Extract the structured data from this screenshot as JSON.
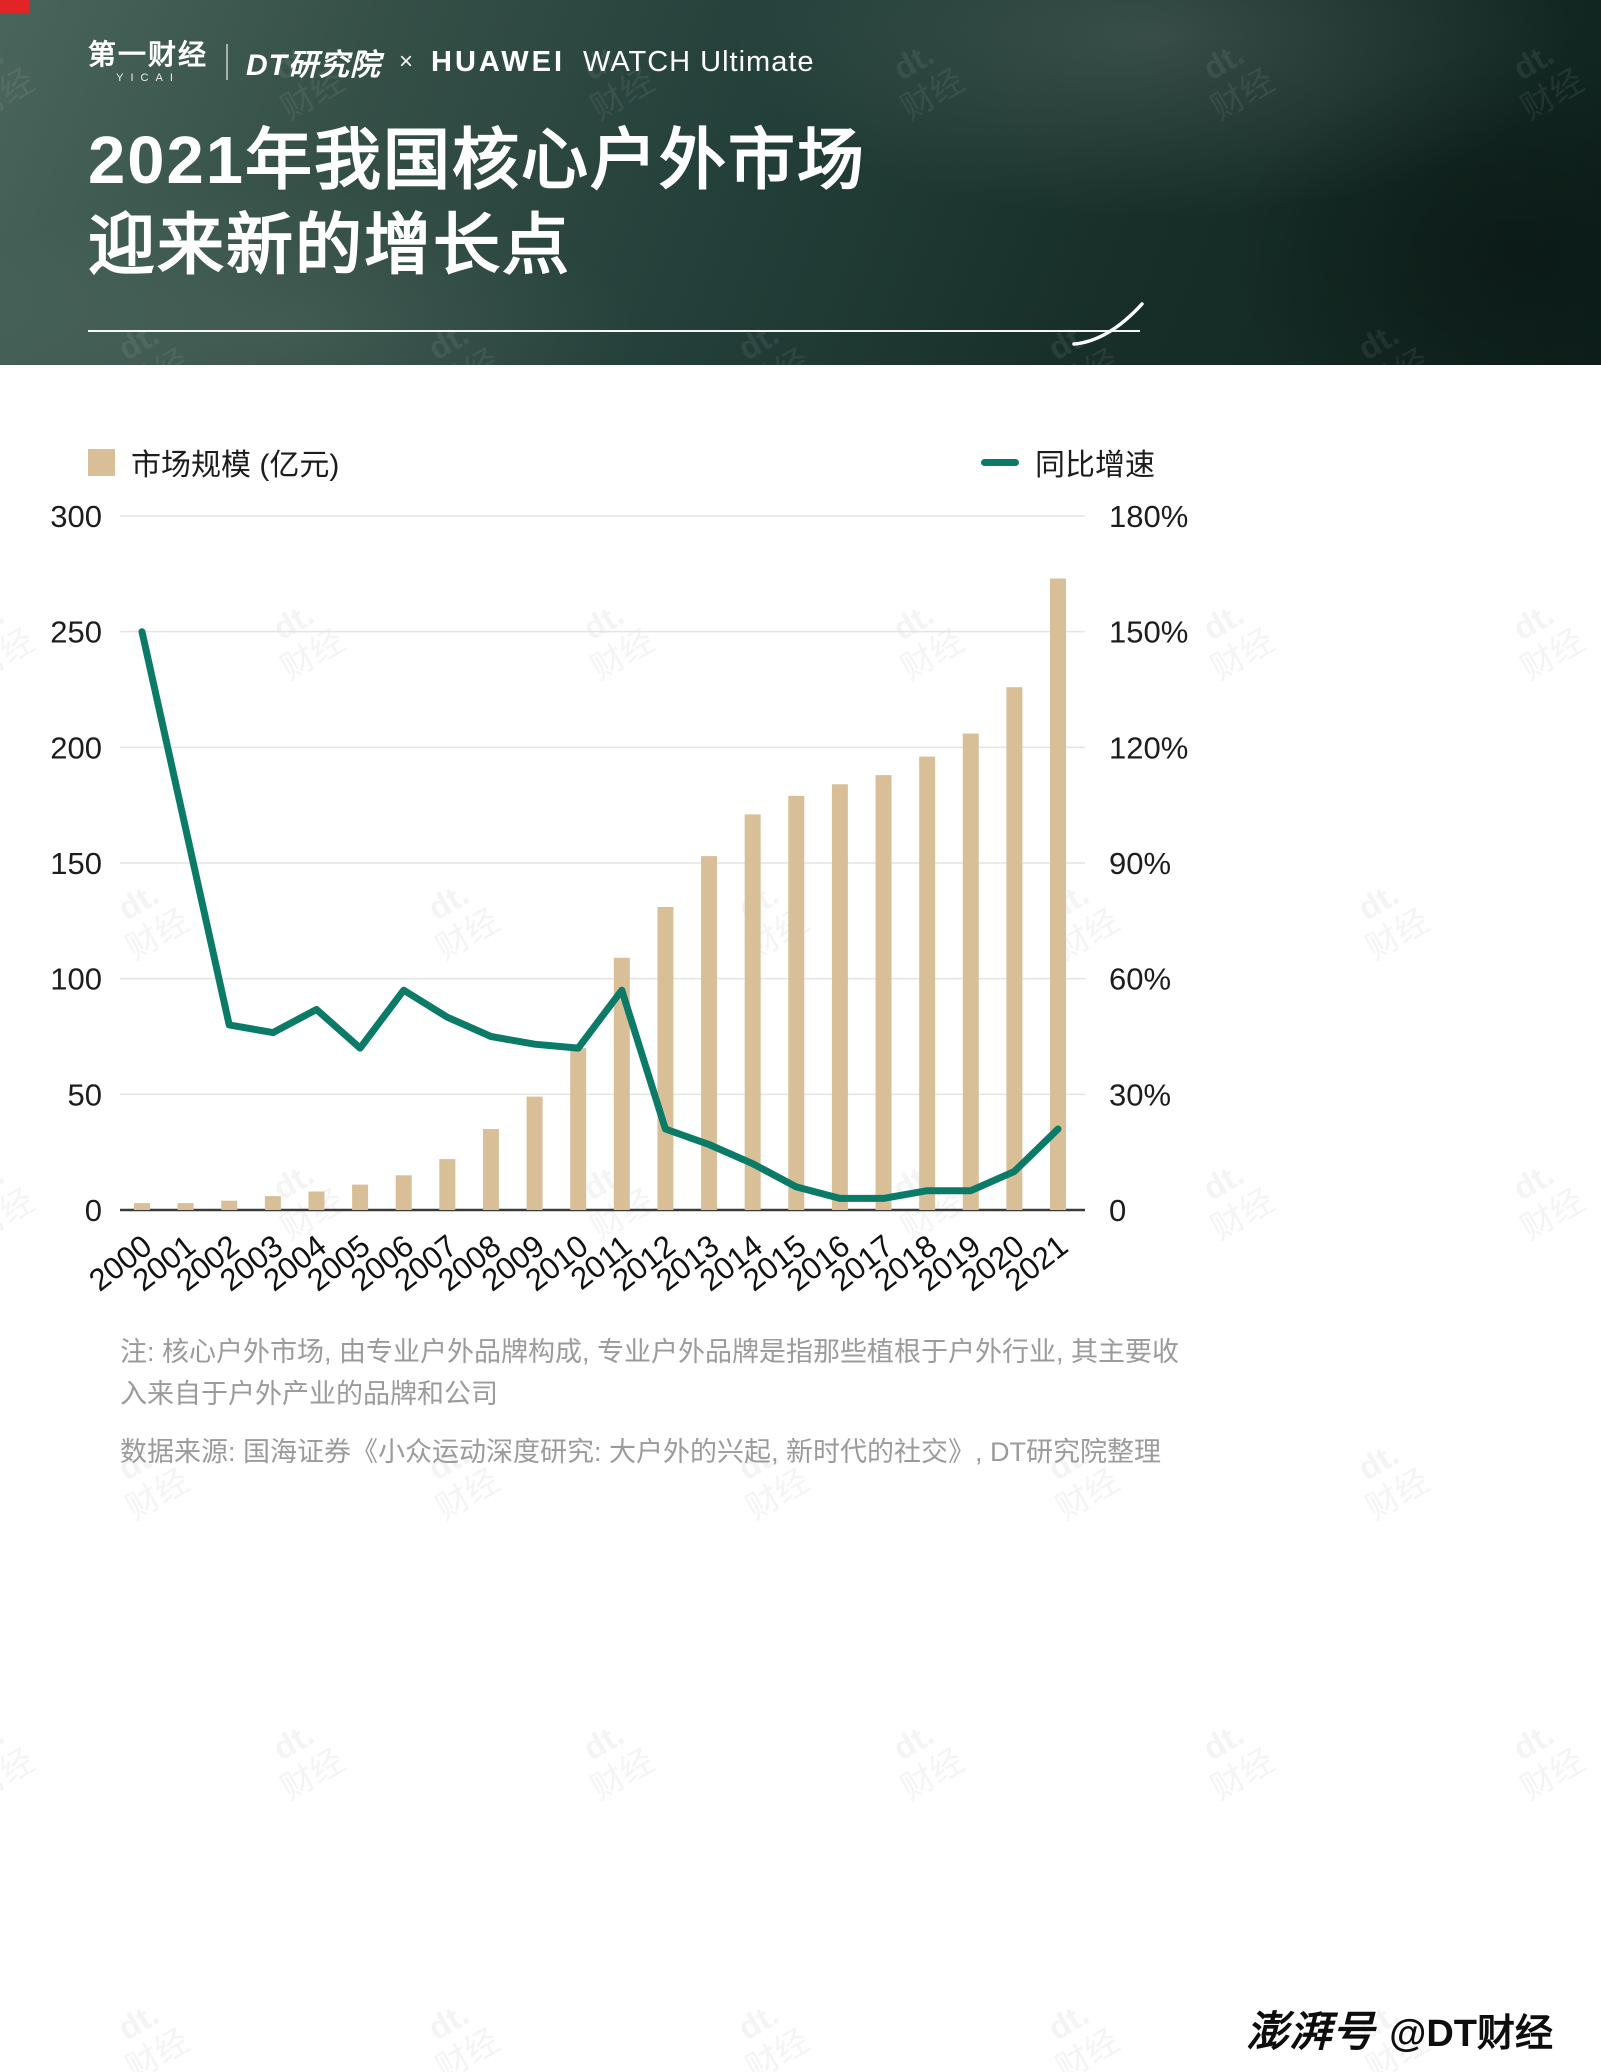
{
  "header": {
    "yicai_cn": "第一财经",
    "yicai_en": "YICAI",
    "dt_logo": "DT研究院",
    "cross": "×",
    "huawei": "HUAWEI",
    "huawei_product": "WATCH Ultimate",
    "title_line1": "2021年我国核心户外市场",
    "title_line2": "迎来新的增长点"
  },
  "legend": {
    "bars_label": "市场规模 (亿元)",
    "line_label": "同比增速"
  },
  "chart_data": {
    "type": "bar",
    "subtype": "bar+line combo",
    "categories": [
      "2000",
      "2001",
      "2002",
      "2003",
      "2004",
      "2005",
      "2006",
      "2007",
      "2008",
      "2009",
      "2010",
      "2011",
      "2012",
      "2013",
      "2014",
      "2015",
      "2016",
      "2017",
      "2018",
      "2019",
      "2020",
      "2021"
    ],
    "series": [
      {
        "name": "市场规模 (亿元)",
        "type": "bar",
        "axis": "left",
        "color": "#d9bf98",
        "values": [
          3,
          3,
          4,
          6,
          8,
          11,
          15,
          22,
          35,
          49,
          70,
          109,
          131,
          153,
          171,
          179,
          184,
          188,
          196,
          206,
          226,
          273
        ]
      },
      {
        "name": "同比增速",
        "type": "line",
        "axis": "right",
        "unit": "%",
        "color": "#0b7b67",
        "values": [
          150,
          99,
          48,
          46,
          52,
          42,
          57,
          50,
          45,
          43,
          42,
          57,
          21,
          17,
          12,
          6,
          3,
          3,
          5,
          5,
          10,
          21
        ]
      }
    ],
    "left_axis": {
      "label": "市场规模 (亿元)",
      "min": 0,
      "max": 300,
      "step": 50,
      "ticks": [
        "0",
        "50",
        "100",
        "150",
        "200",
        "250",
        "300"
      ]
    },
    "right_axis": {
      "label": "同比增速",
      "min": 0,
      "max": 180,
      "step": 30,
      "ticks": [
        "0",
        "30%",
        "60%",
        "90%",
        "120%",
        "150%",
        "180%"
      ]
    },
    "grid": true,
    "legend_position": "top",
    "title": "2021年我国核心户外市场迎来新的增长点"
  },
  "notes": {
    "note1": "注: 核心户外市场, 由专业户外品牌构成, 专业户外品牌是指那些植根于户外行业, 其主要收入来自于户外产业的品牌和公司",
    "note2": "数据来源: 国海证券《小众运动深度研究: 大户外的兴起, 新时代的社交》, DT研究院整理"
  },
  "footer": {
    "platform": "澎湃号",
    "account": "@DT财经"
  },
  "watermark": {
    "line1": "dt.",
    "line2": "财经"
  }
}
